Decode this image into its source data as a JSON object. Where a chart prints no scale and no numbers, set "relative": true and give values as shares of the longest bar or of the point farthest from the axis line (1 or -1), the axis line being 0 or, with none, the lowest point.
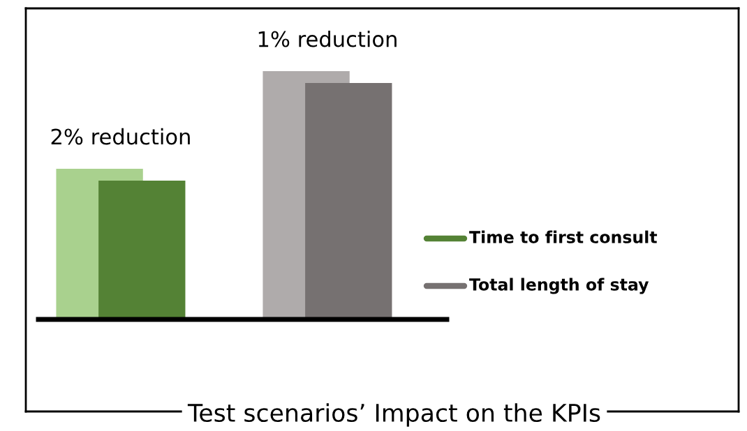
{
  "chart_data": {
    "type": "bar",
    "title": "Test scenarios’ Impact on the KPIs",
    "relative": true,
    "categories": [
      null,
      null
    ],
    "series": [
      {
        "colors": [
          "#a9d18e",
          "#afabab"
        ],
        "values": [
          0.607,
          1
        ]
      },
      {
        "colors": [
          "#548235",
          "#767171"
        ],
        "values": [
          0.559,
          0.952
        ]
      }
    ],
    "annotations": [
      "2% reduction",
      "1% reduction",
      "Time to first consult",
      "Total length of stay"
    ]
  }
}
